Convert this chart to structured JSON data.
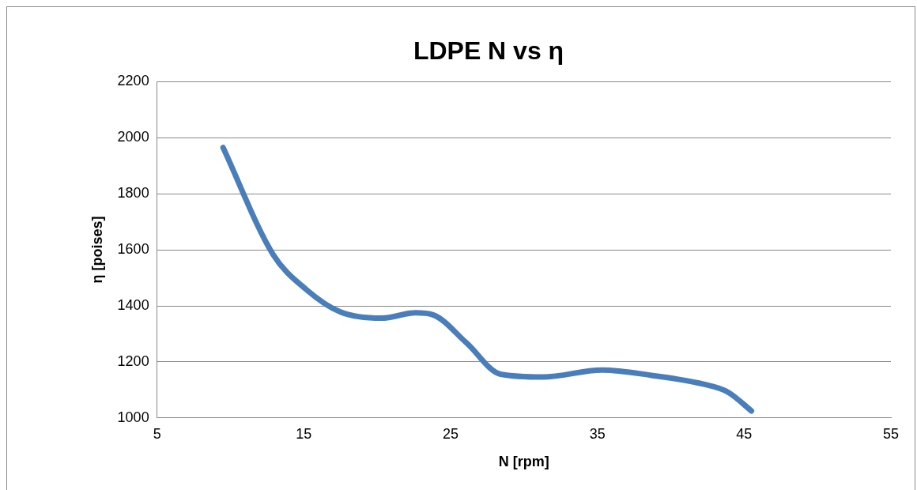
{
  "chart_data": {
    "type": "line",
    "title": "LDPE N vs η",
    "xlabel": "N [rpm]",
    "ylabel": "η [poises]",
    "x": [
      9.5,
      12.9,
      15.2,
      17.5,
      20.3,
      22.6,
      23.8,
      26.1,
      28.4,
      31.3,
      35.3,
      38.7,
      42.2,
      43.9,
      45.5
    ],
    "series": [
      {
        "color": "#4a7ebb",
        "values": [
          1965,
          1584,
          1457,
          1378,
          1356,
          1375,
          1368,
          1267,
          1156,
          1146,
          1171,
          1152,
          1121,
          1092,
          1025
        ]
      }
    ],
    "xlim": [
      5,
      55
    ],
    "xticks": [
      5,
      15,
      25,
      35,
      45,
      55
    ],
    "ylim": [
      1000,
      2200
    ],
    "yticks": [
      1000,
      1200,
      1400,
      1600,
      1800,
      2000,
      2200
    ],
    "grid": "y",
    "legend": false,
    "marker": "none",
    "line_style": "solid"
  }
}
